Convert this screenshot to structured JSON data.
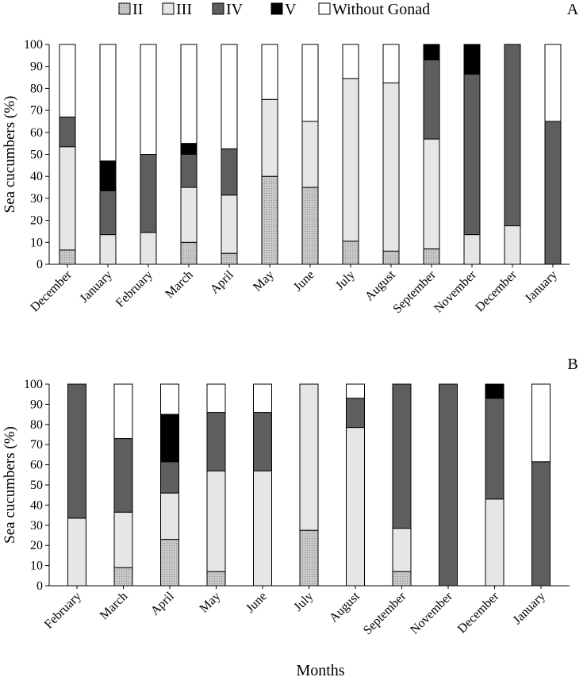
{
  "legend": {
    "items": [
      {
        "label": "II",
        "style": "dotted"
      },
      {
        "label": "III",
        "style": "light"
      },
      {
        "label": "IV",
        "style": "dark"
      },
      {
        "label": "V",
        "style": "black"
      },
      {
        "label": "Without Gonad",
        "style": "white"
      }
    ]
  },
  "colors": {
    "II_base": "#c8c8c8",
    "II_dots": "#8a8a8a",
    "III": "#e6e6e6",
    "IV": "#5e5e5e",
    "V": "#000000",
    "Without Gonad": "#ffffff"
  },
  "chart_data": [
    {
      "type": "bar",
      "stacked": true,
      "panel_label": "A",
      "ylabel": "Sea cucumbers (%)",
      "xlabel": "",
      "ylim": [
        0,
        100
      ],
      "yticks": [
        0,
        10,
        20,
        30,
        40,
        50,
        60,
        70,
        80,
        90,
        100
      ],
      "categories": [
        "December",
        "January",
        "February",
        "March",
        "April",
        "May",
        "June",
        "July",
        "August",
        "September",
        "November",
        "December",
        "January"
      ],
      "series": [
        {
          "name": "II",
          "values": [
            6.5,
            0,
            0,
            10,
            5,
            40,
            35,
            10.5,
            6,
            7,
            0,
            0,
            0
          ]
        },
        {
          "name": "III",
          "values": [
            47,
            13.5,
            14.5,
            25,
            26.5,
            35,
            30,
            74,
            76.5,
            50,
            13.5,
            17.5,
            0
          ]
        },
        {
          "name": "IV",
          "values": [
            13.5,
            20,
            35.5,
            15,
            21,
            0,
            0,
            0,
            0,
            36,
            73,
            82.5,
            65
          ]
        },
        {
          "name": "V",
          "values": [
            0,
            13.5,
            0,
            5,
            0,
            0,
            0,
            0,
            0,
            7,
            13.5,
            0,
            0
          ]
        },
        {
          "name": "Without Gonad",
          "values": [
            33,
            53,
            50,
            45,
            47.5,
            25,
            35,
            15.5,
            17.5,
            0,
            0,
            0,
            35
          ]
        }
      ]
    },
    {
      "type": "bar",
      "stacked": true,
      "panel_label": "B",
      "ylabel": "Sea cucumbers (%)",
      "xlabel": "Months",
      "ylim": [
        0,
        100
      ],
      "yticks": [
        0,
        10,
        20,
        30,
        40,
        50,
        60,
        70,
        80,
        90,
        100
      ],
      "categories": [
        "February",
        "March",
        "April",
        "May",
        "June",
        "July",
        "August",
        "September",
        "November",
        "December",
        "January"
      ],
      "series": [
        {
          "name": "II",
          "values": [
            0,
            9,
            23,
            7,
            0,
            27.5,
            0,
            7,
            0,
            0,
            0
          ]
        },
        {
          "name": "III",
          "values": [
            33.5,
            27.5,
            23,
            50,
            57,
            72.5,
            78.5,
            21.5,
            0,
            43,
            0
          ]
        },
        {
          "name": "IV",
          "values": [
            66.5,
            36.5,
            15.5,
            29,
            29,
            0,
            14.5,
            71.5,
            100,
            50,
            61.5
          ]
        },
        {
          "name": "V",
          "values": [
            0,
            0,
            23.5,
            0,
            0,
            0,
            0,
            0,
            0,
            7,
            0
          ]
        },
        {
          "name": "Without Gonad",
          "values": [
            0,
            27,
            15,
            14,
            14,
            0,
            7,
            0,
            0,
            0,
            38.5
          ]
        }
      ]
    }
  ]
}
